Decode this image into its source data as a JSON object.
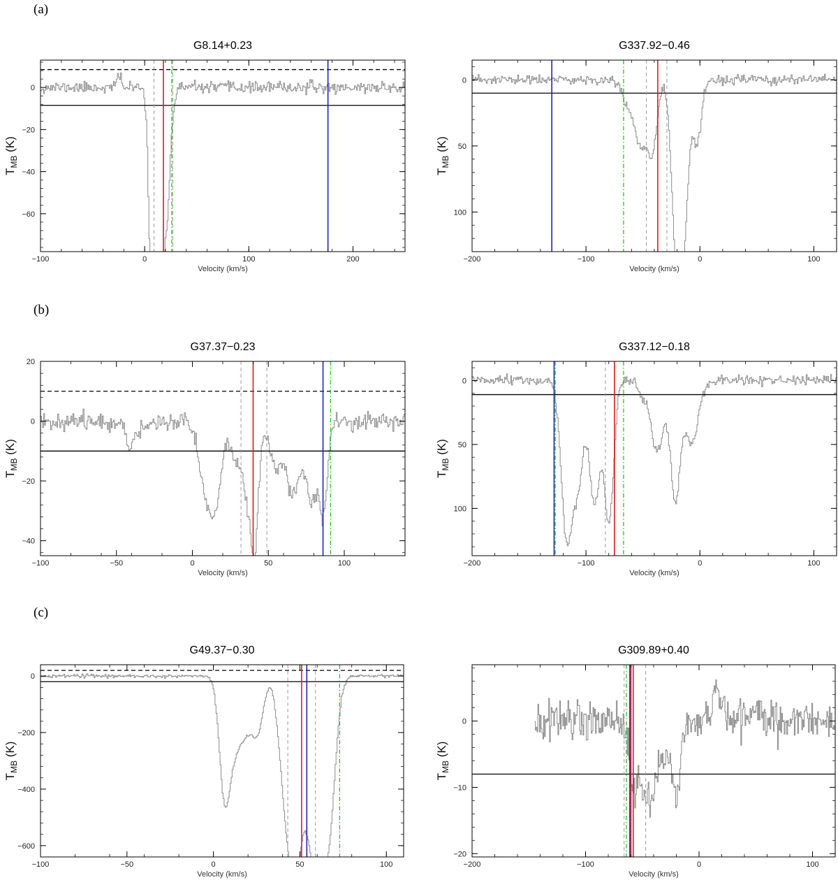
{
  "figure": {
    "x_axis_label": "Velocity (km/s)",
    "y_axis_label": "T",
    "y_axis_label_sub": "MB",
    "y_axis_unit": " (K)"
  },
  "row_labels": [
    "(a)",
    "(b)",
    "(c)"
  ],
  "colors": {
    "spectrum": "#8a8a8a",
    "red": "#e0191e",
    "blue": "#1a28b0",
    "green": "#22c422",
    "black": "#000000",
    "dashed_gray": "#9a9a9a"
  },
  "chart_data": [
    {
      "type": "line",
      "row": "(a)",
      "title": "G8.14+0.23",
      "xlim": [
        -100,
        250
      ],
      "ylim": [
        -78,
        13
      ],
      "xticks": [
        -100,
        0,
        100,
        200
      ],
      "yticks": [
        0,
        -20,
        -40,
        -60
      ],
      "xlabel": "Velocity (km/s)",
      "ylabel": "T_MB (K)",
      "noise": 1.3,
      "noise_seed": 11,
      "features": [
        {
          "c": -25,
          "a": 6,
          "w": 2
        },
        {
          "c": 6,
          "a": -70,
          "w": 2.5
        },
        {
          "c": 10,
          "a": -62,
          "w": 4
        },
        {
          "c": 16,
          "a": -72,
          "w": 3.5
        },
        {
          "c": 22,
          "a": -40,
          "w": 2.5
        },
        {
          "c": 27,
          "a": -8,
          "w": 2
        }
      ],
      "verticals": [
        {
          "x": 18,
          "color": "red",
          "style": "solid"
        },
        {
          "x": 176,
          "color": "blue",
          "style": "solid"
        },
        {
          "x": 26,
          "color": "green",
          "style": "dashdot"
        },
        {
          "x": 9,
          "color": "gray",
          "style": "dashed"
        },
        {
          "x": 27,
          "color": "gray",
          "style": "dashed"
        }
      ],
      "hlines": [
        {
          "y": -8.5,
          "style": "solid"
        },
        {
          "y": 8.5,
          "style": "dashed"
        }
      ]
    },
    {
      "type": "line",
      "row": "(a)",
      "title": "G337.92−0.46",
      "xlim": [
        -200,
        120
      ],
      "ylim": [
        -130,
        15
      ],
      "xticks": [
        -200,
        -100,
        0,
        100
      ],
      "yticks": [
        0,
        -50,
        -100
      ],
      "ytick_labels": [
        "0",
        "50",
        "100"
      ],
      "xlabel": "Velocity (km/s)",
      "ylabel": "T_MB (K)",
      "noise": 1.8,
      "noise_seed": 23,
      "features": [
        {
          "c": -62,
          "a": -18,
          "w": 6
        },
        {
          "c": -52,
          "a": -45,
          "w": 5
        },
        {
          "c": -42,
          "a": -50,
          "w": 4
        },
        {
          "c": -22,
          "a": -98,
          "w": 4
        },
        {
          "c": -17,
          "a": -115,
          "w": 3.5
        },
        {
          "c": -3,
          "a": -50,
          "w": 4
        },
        {
          "c": -12,
          "a": -50,
          "w": 3
        }
      ],
      "verticals": [
        {
          "x": -130,
          "color": "blue",
          "style": "solid"
        },
        {
          "x": -37,
          "color": "red",
          "style": "solid"
        },
        {
          "x": -67,
          "color": "green",
          "style": "dashdot"
        },
        {
          "x": -47,
          "color": "gray",
          "style": "dashed"
        },
        {
          "x": -29,
          "color": "gray",
          "style": "dashed"
        }
      ],
      "hlines": [
        {
          "y": -10,
          "style": "solid"
        }
      ]
    },
    {
      "type": "line",
      "row": "(b)",
      "title": "G37.37−0.23",
      "xlim": [
        -100,
        140
      ],
      "ylim": [
        -45,
        20
      ],
      "xticks": [
        -100,
        -50,
        0,
        50,
        100
      ],
      "yticks": [
        20,
        0,
        -20,
        -40
      ],
      "xlabel": "Velocity (km/s)",
      "ylabel": "T_MB (K)",
      "noise": 1.4,
      "noise_seed": 37,
      "features": [
        {
          "c": -42,
          "a": -9,
          "w": 2.5
        },
        {
          "c": -34,
          "a": -4,
          "w": 3
        },
        {
          "c": 8,
          "a": -20,
          "w": 4
        },
        {
          "c": 15,
          "a": -26,
          "w": 4
        },
        {
          "c": 28,
          "a": -12,
          "w": 3
        },
        {
          "c": 36,
          "a": -24,
          "w": 3.5
        },
        {
          "c": 41,
          "a": -36,
          "w": 2.5
        },
        {
          "c": 55,
          "a": -16,
          "w": 4
        },
        {
          "c": 66,
          "a": -24,
          "w": 4
        },
        {
          "c": 78,
          "a": -26,
          "w": 4
        },
        {
          "c": 86,
          "a": -30,
          "w": 2.5
        }
      ],
      "verticals": [
        {
          "x": 40,
          "color": "red",
          "style": "solid"
        },
        {
          "x": 86,
          "color": "blue",
          "style": "solid"
        },
        {
          "x": 91,
          "color": "green",
          "style": "dashdot"
        },
        {
          "x": 32,
          "color": "gray",
          "style": "dashed"
        },
        {
          "x": 49,
          "color": "gray",
          "style": "dashed"
        }
      ],
      "hlines": [
        {
          "y": -10,
          "style": "solid"
        },
        {
          "y": 10,
          "style": "dashed"
        }
      ]
    },
    {
      "type": "line",
      "row": "(b)",
      "title": "G337.12−0.18",
      "xlim": [
        -200,
        120
      ],
      "ylim": [
        -137,
        15
      ],
      "xticks": [
        -200,
        -100,
        0,
        100
      ],
      "yticks": [
        0,
        -50,
        -100
      ],
      "ytick_labels": [
        "0",
        "50",
        "100"
      ],
      "xlabel": "Velocity (km/s)",
      "ylabel": "T_MB (K)",
      "noise": 1.8,
      "noise_seed": 51,
      "features": [
        {
          "c": -117,
          "a": -125,
          "w": 5
        },
        {
          "c": -107,
          "a": -70,
          "w": 4
        },
        {
          "c": -93,
          "a": -95,
          "w": 5
        },
        {
          "c": -80,
          "a": -110,
          "w": 4
        },
        {
          "c": -52,
          "a": -10,
          "w": 3
        },
        {
          "c": -38,
          "a": -55,
          "w": 6
        },
        {
          "c": -22,
          "a": -92,
          "w": 4
        },
        {
          "c": -8,
          "a": -50,
          "w": 6
        }
      ],
      "verticals": [
        {
          "x": -128,
          "color": "blue",
          "style": "solid"
        },
        {
          "x": -127,
          "color": "green",
          "style": "dashdot"
        },
        {
          "x": -75,
          "color": "red",
          "style": "solid"
        },
        {
          "x": -67,
          "color": "green",
          "style": "dashdot"
        },
        {
          "x": -83,
          "color": "gray",
          "style": "dashed"
        }
      ],
      "hlines": [
        {
          "y": -11,
          "style": "solid"
        }
      ]
    },
    {
      "type": "line",
      "row": "(c)",
      "title": "G49.37−0.30",
      "xlim": [
        -100,
        110
      ],
      "ylim": [
        -640,
        40
      ],
      "xticks": [
        -100,
        -50,
        0,
        50,
        100
      ],
      "yticks": [
        0,
        -200,
        -400,
        -600
      ],
      "xlabel": "Velocity (km/s)",
      "ylabel": "T_MB (K)",
      "noise": 3,
      "noise_seed": 67,
      "features": [
        {
          "c": 6,
          "a": -380,
          "w": 3
        },
        {
          "c": 12,
          "a": -230,
          "w": 4
        },
        {
          "c": 20,
          "a": -160,
          "w": 4
        },
        {
          "c": 26,
          "a": -150,
          "w": 3
        },
        {
          "c": 42,
          "a": -440,
          "w": 4
        },
        {
          "c": 48,
          "a": -560,
          "w": 3.5
        },
        {
          "c": 55,
          "a": -380,
          "w": 3
        },
        {
          "c": 60,
          "a": -500,
          "w": 3
        },
        {
          "c": 66,
          "a": -570,
          "w": 4
        }
      ],
      "verticals": [
        {
          "x": 51,
          "color": "red",
          "style": "solid"
        },
        {
          "x": 54,
          "color": "blue",
          "style": "solid"
        },
        {
          "x": 73,
          "color": "green",
          "style": "dashdot"
        },
        {
          "x": 43,
          "color": "gray",
          "style": "dashed"
        },
        {
          "x": 59,
          "color": "gray",
          "style": "dashed"
        }
      ],
      "hlines": [
        {
          "y": -20,
          "style": "solid"
        },
        {
          "y": 20,
          "style": "dashed"
        }
      ]
    },
    {
      "type": "line",
      "row": "(c)",
      "title": "G309.89+0.40",
      "xlim": [
        -200,
        120
      ],
      "ylim": [
        -20.5,
        8.5
      ],
      "xticks": [
        -200,
        -100,
        0,
        100
      ],
      "yticks": [
        0,
        -10,
        -20
      ],
      "xlabel": "Velocity (km/s)",
      "ylabel": "T_MB (K)",
      "data_xmin": -145,
      "noise": 1.5,
      "noise_seed": 83,
      "features": [
        {
          "c": -58,
          "a": -11,
          "w": 3
        },
        {
          "c": -50,
          "a": -10,
          "w": 3
        },
        {
          "c": -42,
          "a": -12,
          "w": 4
        },
        {
          "c": -30,
          "a": -6,
          "w": 5
        },
        {
          "c": -20,
          "a": -11,
          "w": 3
        },
        {
          "c": 14,
          "a": 5,
          "w": 2
        },
        {
          "c": 20,
          "a": 3,
          "w": 3
        },
        {
          "c": 50,
          "a": 2.5,
          "w": 4
        }
      ],
      "verticals": [
        {
          "x": -60,
          "color": "red",
          "style": "solid"
        },
        {
          "x": -58,
          "color": "red",
          "style": "solid"
        },
        {
          "x": -61,
          "color": "blue",
          "style": "solid"
        },
        {
          "x": -64,
          "color": "green",
          "style": "dashdot"
        },
        {
          "x": -47,
          "color": "gray",
          "style": "dashed"
        },
        {
          "x": -66,
          "color": "gray",
          "style": "dashed"
        }
      ],
      "hlines": [
        {
          "y": -8,
          "style": "solid"
        }
      ]
    }
  ]
}
